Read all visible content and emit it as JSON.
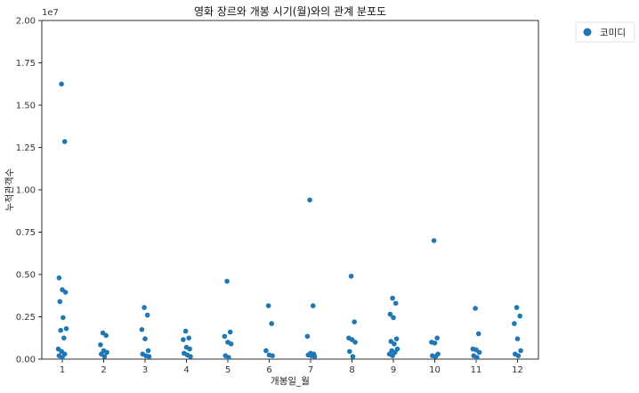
{
  "chart_data": {
    "type": "scatter",
    "title": "영화 장르와 개봉 시기(월)와의 관계 분포도",
    "xlabel": "개봉일_월",
    "ylabel": "누적관객수",
    "y_offset_label": "1e7",
    "categories": [
      "1",
      "2",
      "3",
      "4",
      "5",
      "6",
      "7",
      "8",
      "9",
      "10",
      "11",
      "12"
    ],
    "ylim": [
      0,
      20000000
    ],
    "yticks": [
      0,
      2500000,
      5000000,
      7500000,
      10000000,
      12500000,
      15000000,
      17500000,
      20000000
    ],
    "ytick_labels": [
      "0.00",
      "0.25",
      "0.50",
      "0.75",
      "1.00",
      "1.25",
      "1.50",
      "1.75",
      "2.00"
    ],
    "grid": false,
    "legend_position": "outside-top-right",
    "series": [
      {
        "name": "코미디",
        "color": "#1f77b4",
        "points": [
          {
            "x": 1,
            "y": 16250000
          },
          {
            "x": 1,
            "y": 12850000
          },
          {
            "x": 1,
            "y": 4800000
          },
          {
            "x": 1,
            "y": 4100000
          },
          {
            "x": 1,
            "y": 3950000
          },
          {
            "x": 1,
            "y": 3400000
          },
          {
            "x": 1,
            "y": 2450000
          },
          {
            "x": 1,
            "y": 1800000
          },
          {
            "x": 1,
            "y": 1700000
          },
          {
            "x": 1,
            "y": 1250000
          },
          {
            "x": 1,
            "y": 600000
          },
          {
            "x": 1,
            "y": 450000
          },
          {
            "x": 1,
            "y": 300000
          },
          {
            "x": 1,
            "y": 200000
          },
          {
            "x": 1,
            "y": 100000
          },
          {
            "x": 2,
            "y": 1550000
          },
          {
            "x": 2,
            "y": 1400000
          },
          {
            "x": 2,
            "y": 850000
          },
          {
            "x": 2,
            "y": 500000
          },
          {
            "x": 2,
            "y": 400000
          },
          {
            "x": 2,
            "y": 300000
          },
          {
            "x": 2,
            "y": 150000
          },
          {
            "x": 3,
            "y": 3050000
          },
          {
            "x": 3,
            "y": 2600000
          },
          {
            "x": 3,
            "y": 1750000
          },
          {
            "x": 3,
            "y": 1200000
          },
          {
            "x": 3,
            "y": 500000
          },
          {
            "x": 3,
            "y": 300000
          },
          {
            "x": 3,
            "y": 200000
          },
          {
            "x": 3,
            "y": 150000
          },
          {
            "x": 4,
            "y": 1650000
          },
          {
            "x": 4,
            "y": 1250000
          },
          {
            "x": 4,
            "y": 1150000
          },
          {
            "x": 4,
            "y": 700000
          },
          {
            "x": 4,
            "y": 600000
          },
          {
            "x": 4,
            "y": 350000
          },
          {
            "x": 4,
            "y": 250000
          },
          {
            "x": 4,
            "y": 150000
          },
          {
            "x": 5,
            "y": 4600000
          },
          {
            "x": 5,
            "y": 1600000
          },
          {
            "x": 5,
            "y": 1350000
          },
          {
            "x": 5,
            "y": 1000000
          },
          {
            "x": 5,
            "y": 900000
          },
          {
            "x": 5,
            "y": 200000
          },
          {
            "x": 5,
            "y": 100000
          },
          {
            "x": 6,
            "y": 3150000
          },
          {
            "x": 6,
            "y": 2100000
          },
          {
            "x": 6,
            "y": 500000
          },
          {
            "x": 6,
            "y": 250000
          },
          {
            "x": 6,
            "y": 200000
          },
          {
            "x": 7,
            "y": 9400000
          },
          {
            "x": 7,
            "y": 3150000
          },
          {
            "x": 7,
            "y": 1350000
          },
          {
            "x": 7,
            "y": 350000
          },
          {
            "x": 7,
            "y": 300000
          },
          {
            "x": 7,
            "y": 250000
          },
          {
            "x": 7,
            "y": 200000
          },
          {
            "x": 7,
            "y": 150000
          },
          {
            "x": 8,
            "y": 4900000
          },
          {
            "x": 8,
            "y": 2200000
          },
          {
            "x": 8,
            "y": 1250000
          },
          {
            "x": 8,
            "y": 1150000
          },
          {
            "x": 8,
            "y": 1000000
          },
          {
            "x": 8,
            "y": 450000
          },
          {
            "x": 8,
            "y": 150000
          },
          {
            "x": 9,
            "y": 3600000
          },
          {
            "x": 9,
            "y": 3300000
          },
          {
            "x": 9,
            "y": 2650000
          },
          {
            "x": 9,
            "y": 2450000
          },
          {
            "x": 9,
            "y": 1200000
          },
          {
            "x": 9,
            "y": 1050000
          },
          {
            "x": 9,
            "y": 900000
          },
          {
            "x": 9,
            "y": 600000
          },
          {
            "x": 9,
            "y": 500000
          },
          {
            "x": 9,
            "y": 400000
          },
          {
            "x": 9,
            "y": 300000
          },
          {
            "x": 9,
            "y": 200000
          },
          {
            "x": 10,
            "y": 7000000
          },
          {
            "x": 10,
            "y": 1250000
          },
          {
            "x": 10,
            "y": 1000000
          },
          {
            "x": 10,
            "y": 950000
          },
          {
            "x": 10,
            "y": 300000
          },
          {
            "x": 10,
            "y": 200000
          },
          {
            "x": 10,
            "y": 150000
          },
          {
            "x": 11,
            "y": 3000000
          },
          {
            "x": 11,
            "y": 1500000
          },
          {
            "x": 11,
            "y": 600000
          },
          {
            "x": 11,
            "y": 550000
          },
          {
            "x": 11,
            "y": 400000
          },
          {
            "x": 11,
            "y": 200000
          },
          {
            "x": 11,
            "y": 100000
          },
          {
            "x": 12,
            "y": 3050000
          },
          {
            "x": 12,
            "y": 2550000
          },
          {
            "x": 12,
            "y": 2100000
          },
          {
            "x": 12,
            "y": 1200000
          },
          {
            "x": 12,
            "y": 500000
          },
          {
            "x": 12,
            "y": 300000
          },
          {
            "x": 12,
            "y": 200000
          }
        ]
      }
    ]
  }
}
